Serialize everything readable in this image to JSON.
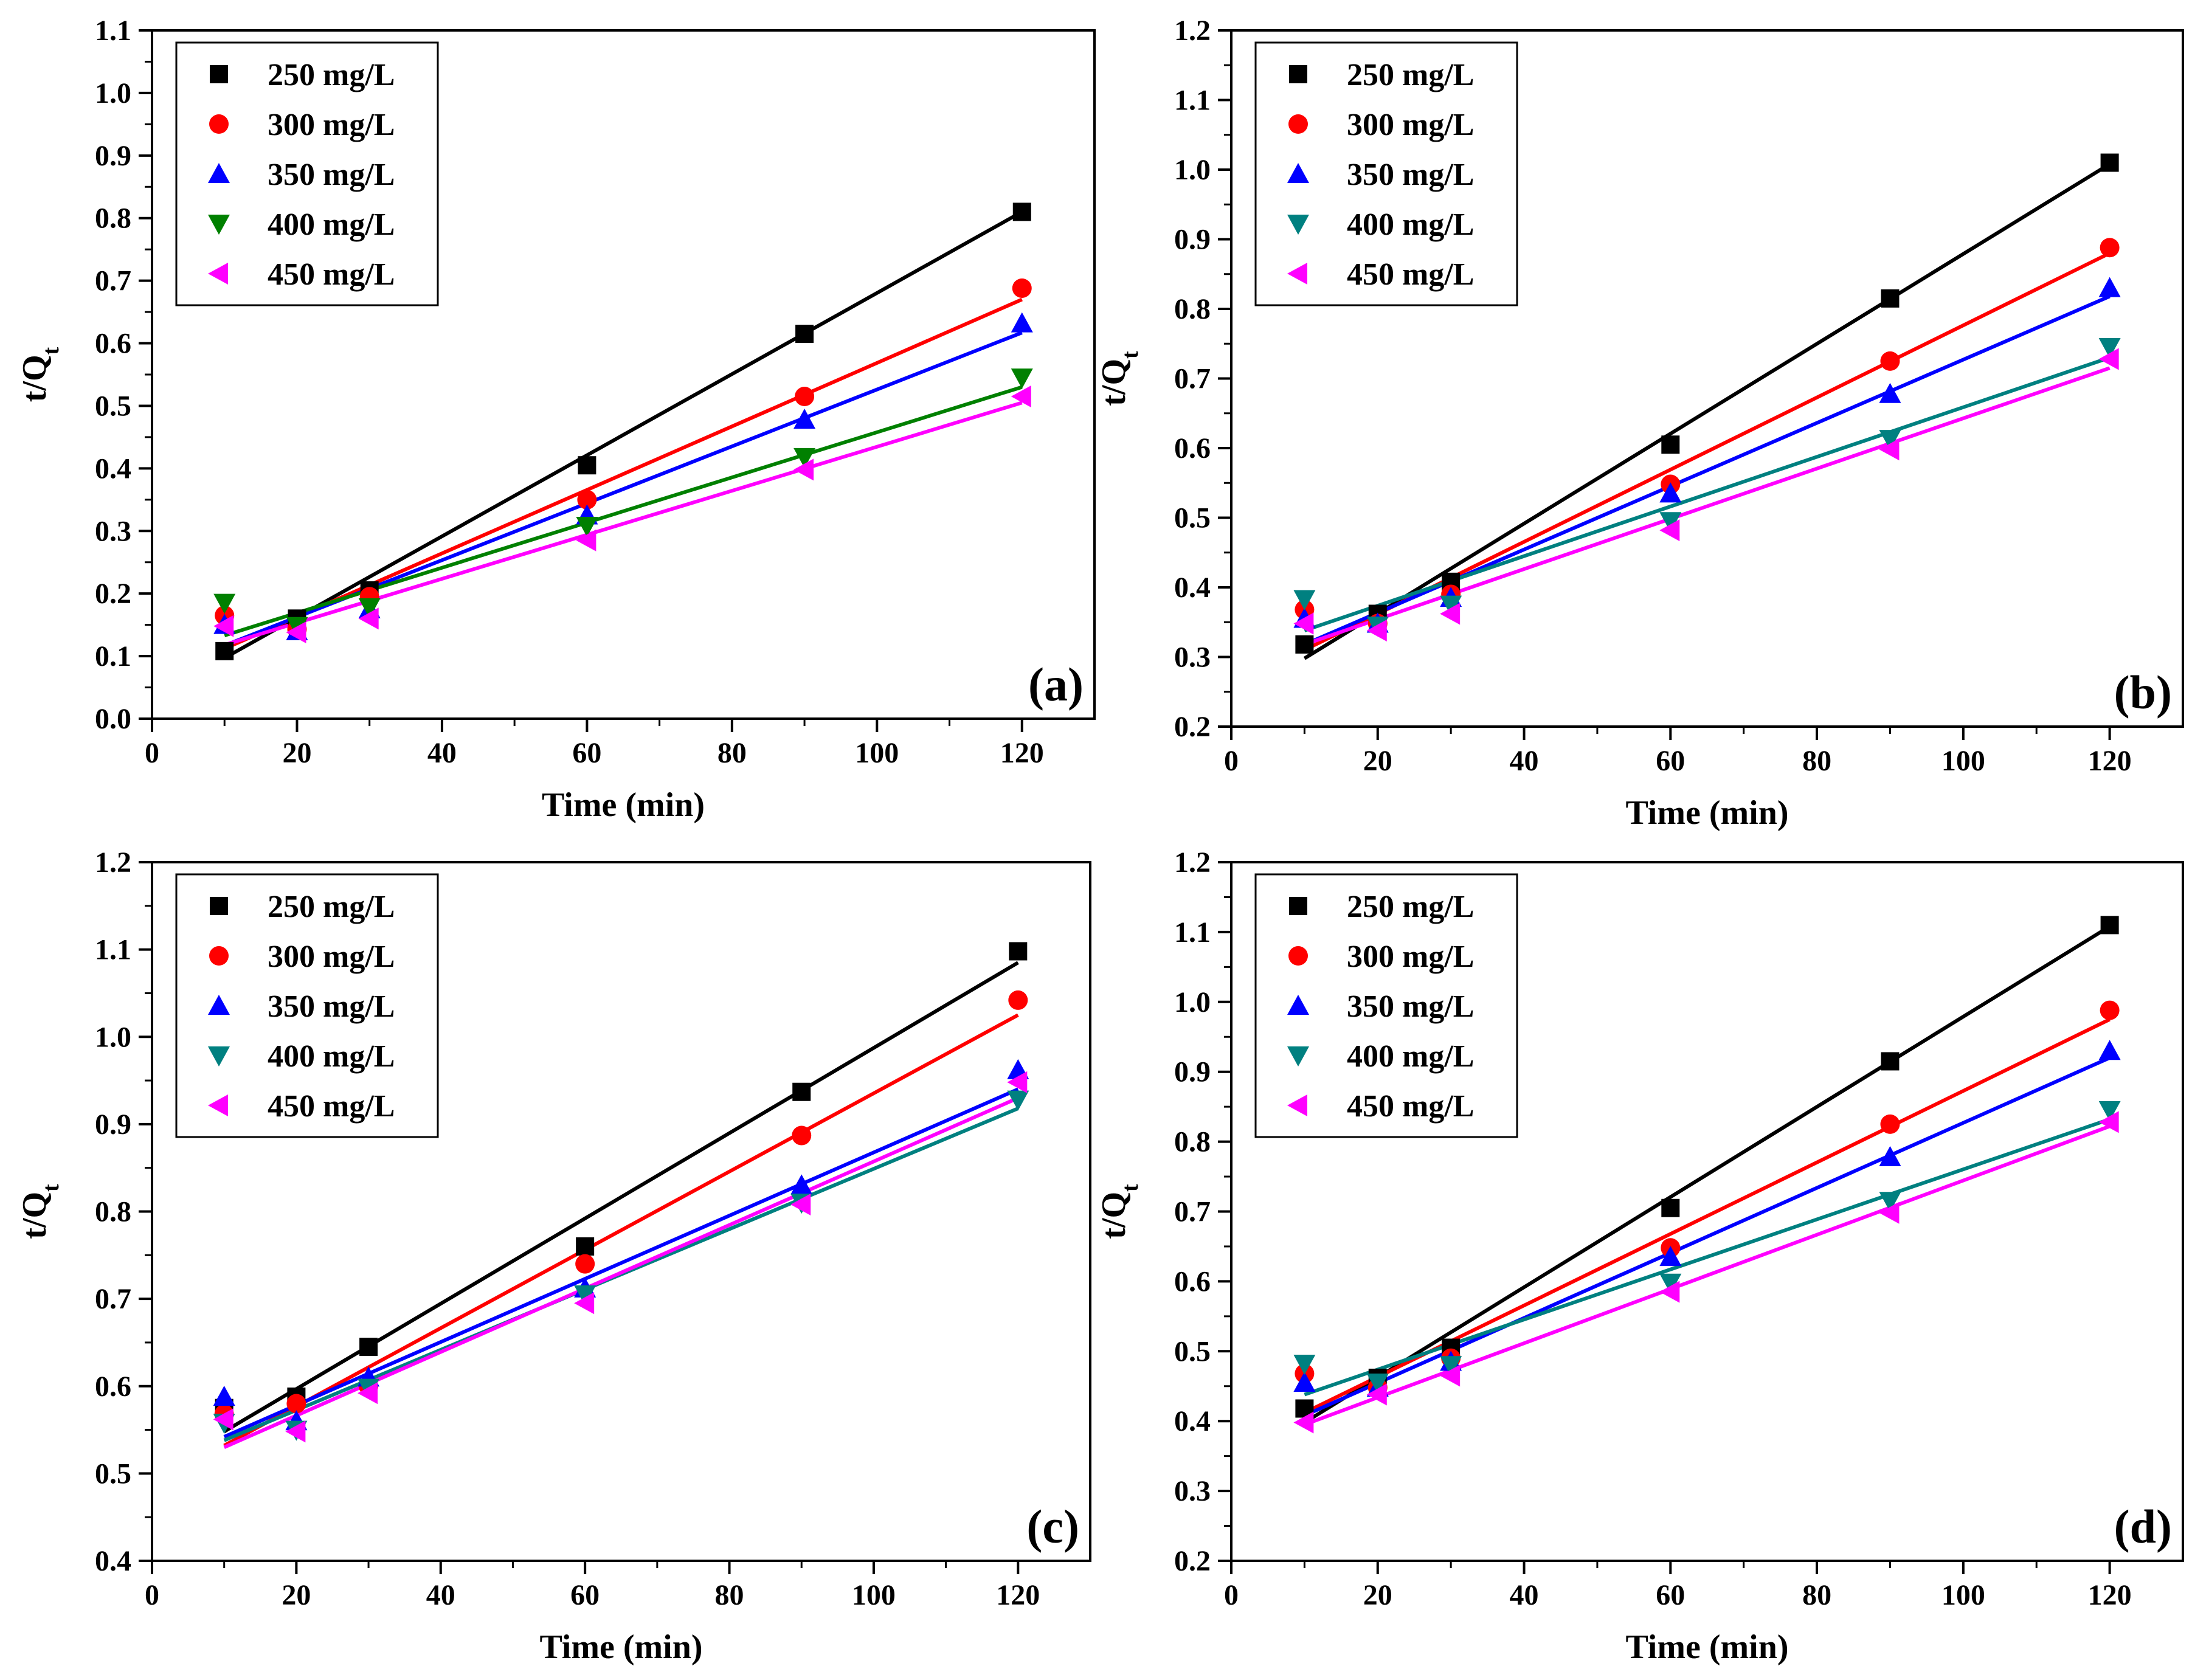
{
  "chart_data": [
    {
      "type": "scatter",
      "panel_label": "(a)",
      "xlabel": "Time (min)",
      "ylabel": "t/Q",
      "ylabel_sub": "t",
      "xlim": [
        0,
        130
      ],
      "ylim": [
        0.0,
        1.1
      ],
      "xticks": [
        "0",
        "20",
        "40",
        "60",
        "80",
        "100",
        "120"
      ],
      "yticks": [
        "0.0",
        "0.1",
        "0.2",
        "0.3",
        "0.4",
        "0.5",
        "0.6",
        "0.7",
        "0.8",
        "0.9",
        "1.0",
        "1.1"
      ],
      "legend_position": "top-left",
      "x": [
        10,
        20,
        30,
        60,
        90,
        120
      ],
      "series": [
        {
          "name": "250 mg/L",
          "marker": "square",
          "color": "#000000",
          "values": [
            0.108,
            0.16,
            0.205,
            0.405,
            0.615,
            0.81
          ],
          "fit": [
            0.097,
            0.81
          ]
        },
        {
          "name": "300 mg/L",
          "marker": "circle",
          "color": "#ff0000",
          "values": [
            0.165,
            0.143,
            0.195,
            0.35,
            0.515,
            0.688
          ],
          "fit": [
            0.112,
            0.67
          ]
        },
        {
          "name": "350 mg/L",
          "marker": "triangle-up",
          "color": "#0000ff",
          "values": [
            0.15,
            0.14,
            0.175,
            0.325,
            0.478,
            0.632
          ],
          "fit": [
            0.117,
            0.617
          ]
        },
        {
          "name": "400 mg/L",
          "marker": "triangle-down",
          "color": "#008000",
          "values": [
            0.185,
            0.148,
            0.178,
            0.308,
            0.418,
            0.545
          ],
          "fit": [
            0.133,
            0.53
          ]
        },
        {
          "name": "450 mg/L",
          "marker": "triangle-left",
          "color": "#ff00ff",
          "values": [
            0.148,
            0.138,
            0.16,
            0.285,
            0.398,
            0.515
          ],
          "fit": [
            0.118,
            0.505
          ]
        }
      ]
    },
    {
      "type": "scatter",
      "panel_label": "(b)",
      "xlabel": "Time (min)",
      "ylabel": "t/Q",
      "ylabel_sub": "t",
      "xlim": [
        0,
        130
      ],
      "ylim": [
        0.2,
        1.2
      ],
      "xticks": [
        "0",
        "20",
        "40",
        "60",
        "80",
        "100",
        "120"
      ],
      "yticks": [
        "0.2",
        "0.3",
        "0.4",
        "0.5",
        "0.6",
        "0.7",
        "0.8",
        "0.9",
        "1.0",
        "1.1",
        "1.2"
      ],
      "legend_position": "top-left",
      "x": [
        10,
        20,
        30,
        60,
        90,
        120
      ],
      "series": [
        {
          "name": "250 mg/L",
          "marker": "square",
          "color": "#000000",
          "values": [
            0.318,
            0.362,
            0.408,
            0.605,
            0.815,
            1.01
          ],
          "fit": [
            0.298,
            1.008
          ]
        },
        {
          "name": "300 mg/L",
          "marker": "circle",
          "color": "#ff0000",
          "values": [
            0.368,
            0.348,
            0.39,
            0.548,
            0.725,
            0.888
          ],
          "fit": [
            0.31,
            0.88
          ]
        },
        {
          "name": "350 mg/L",
          "marker": "triangle-up",
          "color": "#0000ff",
          "values": [
            0.355,
            0.348,
            0.385,
            0.535,
            0.678,
            0.83
          ],
          "fit": [
            0.318,
            0.818
          ]
        },
        {
          "name": "400 mg/L",
          "marker": "triangle-down",
          "color": "#008080",
          "values": [
            0.383,
            0.345,
            0.375,
            0.495,
            0.613,
            0.745
          ],
          "fit": [
            0.338,
            0.73
          ]
        },
        {
          "name": "450 mg/L",
          "marker": "triangle-left",
          "color": "#ff00ff",
          "values": [
            0.348,
            0.338,
            0.362,
            0.482,
            0.598,
            0.728
          ],
          "fit": [
            0.318,
            0.715
          ]
        }
      ]
    },
    {
      "type": "scatter",
      "panel_label": "(c)",
      "xlabel": "Time (min)",
      "ylabel": "t/Q",
      "ylabel_sub": "t",
      "xlim": [
        0,
        130
      ],
      "ylim": [
        0.4,
        1.2
      ],
      "xticks": [
        "0",
        "20",
        "40",
        "60",
        "80",
        "100",
        "120"
      ],
      "yticks": [
        "0.4",
        "0.5",
        "0.6",
        "0.7",
        "0.8",
        "0.9",
        "1.0",
        "1.1",
        "1.2"
      ],
      "legend_position": "top-left",
      "x": [
        10,
        20,
        30,
        60,
        90,
        120
      ],
      "series": [
        {
          "name": "250 mg/L",
          "marker": "square",
          "color": "#000000",
          "values": [
            0.575,
            0.588,
            0.645,
            0.76,
            0.937,
            1.098
          ],
          "fit": [
            0.548,
            1.085
          ]
        },
        {
          "name": "300 mg/L",
          "marker": "circle",
          "color": "#ff0000",
          "values": [
            0.568,
            0.58,
            0.6,
            0.74,
            0.887,
            1.042
          ],
          "fit": [
            0.532,
            1.025
          ]
        },
        {
          "name": "350 mg/L",
          "marker": "triangle-up",
          "color": "#0000ff",
          "values": [
            0.588,
            0.56,
            0.61,
            0.712,
            0.83,
            0.962
          ],
          "fit": [
            0.542,
            0.94
          ]
        },
        {
          "name": "400 mg/L",
          "marker": "triangle-down",
          "color": "#008080",
          "values": [
            0.558,
            0.55,
            0.598,
            0.705,
            0.81,
            0.928
          ],
          "fit": [
            0.538,
            0.918
          ]
        },
        {
          "name": "450 mg/L",
          "marker": "triangle-left",
          "color": "#ff00ff",
          "values": [
            0.562,
            0.548,
            0.592,
            0.695,
            0.808,
            0.948
          ],
          "fit": [
            0.53,
            0.93
          ]
        }
      ]
    },
    {
      "type": "scatter",
      "panel_label": "(d)",
      "xlabel": "Time (min)",
      "ylabel": "t/Q",
      "ylabel_sub": "t",
      "xlim": [
        0,
        130
      ],
      "ylim": [
        0.2,
        1.2
      ],
      "xticks": [
        "0",
        "20",
        "40",
        "60",
        "80",
        "100",
        "120"
      ],
      "yticks": [
        "0.2",
        "0.3",
        "0.4",
        "0.5",
        "0.6",
        "0.7",
        "0.8",
        "0.9",
        "1.0",
        "1.1",
        "1.2"
      ],
      "legend_position": "top-left",
      "x": [
        10,
        20,
        30,
        60,
        90,
        120
      ],
      "series": [
        {
          "name": "250 mg/L",
          "marker": "square",
          "color": "#000000",
          "values": [
            0.418,
            0.462,
            0.505,
            0.705,
            0.915,
            1.11
          ],
          "fit": [
            0.398,
            1.108
          ]
        },
        {
          "name": "300 mg/L",
          "marker": "circle",
          "color": "#ff0000",
          "values": [
            0.468,
            0.448,
            0.49,
            0.648,
            0.825,
            0.988
          ],
          "fit": [
            0.412,
            0.975
          ]
        },
        {
          "name": "350 mg/L",
          "marker": "triangle-up",
          "color": "#0000ff",
          "values": [
            0.455,
            0.448,
            0.485,
            0.635,
            0.778,
            0.93
          ],
          "fit": [
            0.408,
            0.92
          ]
        },
        {
          "name": "400 mg/L",
          "marker": "triangle-down",
          "color": "#008080",
          "values": [
            0.482,
            0.455,
            0.48,
            0.598,
            0.715,
            0.845
          ],
          "fit": [
            0.438,
            0.832
          ]
        },
        {
          "name": "450 mg/L",
          "marker": "triangle-left",
          "color": "#ff00ff",
          "values": [
            0.398,
            0.438,
            0.465,
            0.585,
            0.698,
            0.828
          ],
          "fit": [
            0.395,
            0.822
          ]
        }
      ]
    }
  ]
}
